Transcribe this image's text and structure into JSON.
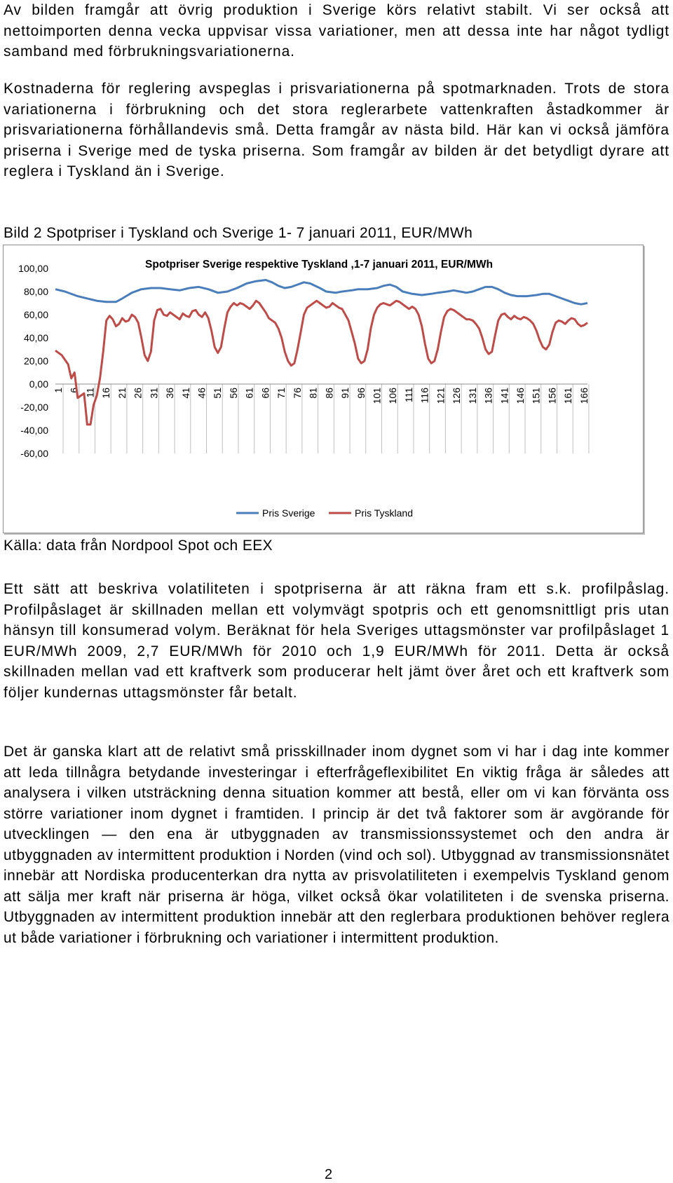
{
  "document": {
    "para1": "Av bilden framgår att övrig produktion i Sverige körs relativt stabilt. Vi ser också att nettoimporten denna vecka uppvisar vissa variationer, men att dessa inte har något tydligt samband med förbrukningsvariationerna.",
    "para2": "Kostnaderna för reglering avspeglas i prisvariationerna på spotmarknaden. Trots de stora variationerna i förbrukning och det stora reglerarbete vattenkraften åstadkommer är prisvariationerna förhållandevis små. Detta framgår av nästa bild. Här kan vi också jämföra priserna i Sverige med de tyska priserna. Som framgår av bilden är det betydligt dyrare att reglera i Tyskland än i Sverige.",
    "figure_caption": "Bild 2 Spotpriser i Tyskland och Sverige 1- 7 januari 2011, EUR/MWh",
    "source": "Källa: data från Nordpool Spot och EEX",
    "para3": "Ett sätt att beskriva volatiliteten i spotpriserna är att räkna fram ett s.k. profilpåslag. Profilpåslaget är skillnaden mellan ett volymvägt spotpris och ett genomsnittligt pris utan hänsyn till konsumerad volym. Beräknat för hela Sveriges uttagsmönster var profilpåslaget 1 EUR/MWh 2009, 2,7 EUR/MWh för 2010 och 1,9 EUR/MWh för 2011. Detta är också skillnaden mellan vad ett kraftverk som producerar helt jämt över året och ett kraftverk som följer kundernas uttagsmönster får betalt.",
    "para4": "Det är ganska klart att de relativt små prisskillnader inom dygnet som vi har i dag inte kommer att leda tillnågra betydande investeringar i efterfrågeflexibilitet En viktig fråga är således att analysera i vilken utsträckning denna situation kommer att bestå, eller om vi kan förvänta oss större variationer inom dygnet i framtiden. I princip är det två faktorer som är avgörande för utvecklingen — den ena är utbyggnaden av transmissionssystemet och den andra är utbyggnaden av intermittent produktion i Norden (vind och sol). Utbyggnad av transmissionsnätet innebär att Nordiska producenterkan dra nytta av prisvolatiliteten i exempelvis Tyskland genom att sälja mer kraft när priserna är höga, vilket också ökar volatiliteten i de svenska priserna. Utbyggnaden av intermittent produktion innebär att den reglerbara produktionen behöver reglera ut både variationer i förbrukning och variationer i intermittent produktion.",
    "page_number": "2"
  },
  "chart_data": {
    "type": "line",
    "title": "Spotpriser Sverige respektive Tyskland ,1-7 januari 2011, EUR/MWh",
    "xlabel": "",
    "ylabel": "",
    "ylim": [
      -60,
      100
    ],
    "yticks": [
      "100,00",
      "80,00",
      "60,00",
      "40,00",
      "20,00",
      "0,00",
      "-20,00",
      "-40,00",
      "-60,00"
    ],
    "xticks": [
      "1",
      "6",
      "11",
      "16",
      "21",
      "26",
      "31",
      "36",
      "41",
      "46",
      "51",
      "56",
      "61",
      "66",
      "71",
      "76",
      "81",
      "86",
      "91",
      "96",
      "101",
      "106",
      "111",
      "116",
      "121",
      "126",
      "131",
      "136",
      "141",
      "146",
      "151",
      "156",
      "161",
      "166"
    ],
    "xlim": [
      1,
      168
    ],
    "grid": "vertical",
    "legend_position": "bottom",
    "series": [
      {
        "name": "Pris Sverige",
        "color": "#4a7ebb",
        "points": [
          [
            1,
            82
          ],
          [
            4,
            80
          ],
          [
            8,
            76
          ],
          [
            11,
            74
          ],
          [
            14,
            72
          ],
          [
            17,
            71
          ],
          [
            20,
            71
          ],
          [
            22,
            74
          ],
          [
            25,
            79
          ],
          [
            28,
            82
          ],
          [
            31,
            83
          ],
          [
            34,
            83
          ],
          [
            37,
            82
          ],
          [
            40,
            81
          ],
          [
            43,
            83
          ],
          [
            46,
            84
          ],
          [
            49,
            82
          ],
          [
            52,
            79
          ],
          [
            55,
            80
          ],
          [
            58,
            83
          ],
          [
            61,
            87
          ],
          [
            64,
            89
          ],
          [
            67,
            90
          ],
          [
            69,
            88
          ],
          [
            71,
            85
          ],
          [
            73,
            83
          ],
          [
            75,
            84
          ],
          [
            77,
            86
          ],
          [
            79,
            88
          ],
          [
            81,
            87
          ],
          [
            84,
            83
          ],
          [
            86,
            80
          ],
          [
            89,
            79
          ],
          [
            91,
            80
          ],
          [
            94,
            81
          ],
          [
            96,
            82
          ],
          [
            99,
            82
          ],
          [
            102,
            83
          ],
          [
            104,
            85
          ],
          [
            106,
            86
          ],
          [
            108,
            84
          ],
          [
            110,
            80
          ],
          [
            113,
            78
          ],
          [
            116,
            77
          ],
          [
            119,
            78
          ],
          [
            121,
            79
          ],
          [
            124,
            80
          ],
          [
            126,
            81
          ],
          [
            128,
            80
          ],
          [
            130,
            79
          ],
          [
            132,
            80
          ],
          [
            134,
            82
          ],
          [
            136,
            84
          ],
          [
            138,
            84
          ],
          [
            140,
            82
          ],
          [
            142,
            79
          ],
          [
            144,
            77
          ],
          [
            146,
            76
          ],
          [
            149,
            76
          ],
          [
            152,
            77
          ],
          [
            154,
            78
          ],
          [
            156,
            78
          ],
          [
            158,
            76
          ],
          [
            160,
            74
          ],
          [
            162,
            72
          ],
          [
            164,
            70
          ],
          [
            166,
            69
          ],
          [
            168,
            70
          ]
        ]
      },
      {
        "name": "Pris Tyskland",
        "color": "#be4b48",
        "points": [
          [
            1,
            29
          ],
          [
            3,
            25
          ],
          [
            5,
            17
          ],
          [
            6,
            5
          ],
          [
            7,
            10
          ],
          [
            8,
            -12
          ],
          [
            9,
            -10
          ],
          [
            10,
            -8
          ],
          [
            11,
            -35
          ],
          [
            12,
            -35
          ],
          [
            13,
            -18
          ],
          [
            14,
            -10
          ],
          [
            15,
            5
          ],
          [
            16,
            28
          ],
          [
            17,
            55
          ],
          [
            18,
            59
          ],
          [
            19,
            56
          ],
          [
            20,
            50
          ],
          [
            21,
            52
          ],
          [
            22,
            57
          ],
          [
            23,
            54
          ],
          [
            24,
            55
          ],
          [
            25,
            60
          ],
          [
            26,
            58
          ],
          [
            27,
            53
          ],
          [
            28,
            40
          ],
          [
            29,
            25
          ],
          [
            30,
            20
          ],
          [
            31,
            28
          ],
          [
            32,
            55
          ],
          [
            33,
            64
          ],
          [
            34,
            65
          ],
          [
            35,
            60
          ],
          [
            36,
            59
          ],
          [
            37,
            62
          ],
          [
            38,
            60
          ],
          [
            39,
            58
          ],
          [
            40,
            56
          ],
          [
            41,
            61
          ],
          [
            42,
            59
          ],
          [
            43,
            58
          ],
          [
            44,
            63
          ],
          [
            45,
            64
          ],
          [
            46,
            60
          ],
          [
            47,
            58
          ],
          [
            48,
            62
          ],
          [
            49,
            57
          ],
          [
            50,
            46
          ],
          [
            51,
            32
          ],
          [
            52,
            27
          ],
          [
            53,
            32
          ],
          [
            54,
            48
          ],
          [
            55,
            62
          ],
          [
            56,
            67
          ],
          [
            57,
            70
          ],
          [
            58,
            68
          ],
          [
            59,
            70
          ],
          [
            60,
            69
          ],
          [
            61,
            67
          ],
          [
            62,
            65
          ],
          [
            63,
            68
          ],
          [
            64,
            72
          ],
          [
            65,
            70
          ],
          [
            66,
            66
          ],
          [
            67,
            62
          ],
          [
            68,
            57
          ],
          [
            69,
            55
          ],
          [
            70,
            53
          ],
          [
            71,
            48
          ],
          [
            72,
            40
          ],
          [
            73,
            28
          ],
          [
            74,
            20
          ],
          [
            75,
            16
          ],
          [
            76,
            18
          ],
          [
            77,
            30
          ],
          [
            78,
            45
          ],
          [
            79,
            60
          ],
          [
            80,
            66
          ],
          [
            81,
            68
          ],
          [
            82,
            70
          ],
          [
            83,
            72
          ],
          [
            84,
            70
          ],
          [
            85,
            68
          ],
          [
            86,
            66
          ],
          [
            87,
            67
          ],
          [
            88,
            70
          ],
          [
            89,
            68
          ],
          [
            90,
            66
          ],
          [
            91,
            65
          ],
          [
            92,
            60
          ],
          [
            93,
            55
          ],
          [
            94,
            45
          ],
          [
            95,
            35
          ],
          [
            96,
            22
          ],
          [
            97,
            18
          ],
          [
            98,
            20
          ],
          [
            99,
            30
          ],
          [
            100,
            48
          ],
          [
            101,
            60
          ],
          [
            102,
            66
          ],
          [
            103,
            69
          ],
          [
            104,
            70
          ],
          [
            105,
            69
          ],
          [
            106,
            68
          ],
          [
            107,
            70
          ],
          [
            108,
            72
          ],
          [
            109,
            71
          ],
          [
            110,
            69
          ],
          [
            111,
            67
          ],
          [
            112,
            65
          ],
          [
            113,
            67
          ],
          [
            114,
            65
          ],
          [
            115,
            60
          ],
          [
            116,
            50
          ],
          [
            117,
            35
          ],
          [
            118,
            22
          ],
          [
            119,
            18
          ],
          [
            120,
            20
          ],
          [
            121,
            30
          ],
          [
            122,
            45
          ],
          [
            123,
            58
          ],
          [
            124,
            63
          ],
          [
            125,
            65
          ],
          [
            126,
            64
          ],
          [
            127,
            62
          ],
          [
            128,
            60
          ],
          [
            129,
            58
          ],
          [
            130,
            56
          ],
          [
            131,
            56
          ],
          [
            132,
            55
          ],
          [
            133,
            52
          ],
          [
            134,
            48
          ],
          [
            135,
            40
          ],
          [
            136,
            30
          ],
          [
            137,
            26
          ],
          [
            138,
            28
          ],
          [
            139,
            42
          ],
          [
            140,
            55
          ],
          [
            141,
            60
          ],
          [
            142,
            61
          ],
          [
            143,
            58
          ],
          [
            144,
            56
          ],
          [
            145,
            59
          ],
          [
            146,
            57
          ],
          [
            147,
            56
          ],
          [
            148,
            58
          ],
          [
            149,
            57
          ],
          [
            150,
            55
          ],
          [
            151,
            52
          ],
          [
            152,
            46
          ],
          [
            153,
            38
          ],
          [
            154,
            32
          ],
          [
            155,
            30
          ],
          [
            156,
            34
          ],
          [
            157,
            45
          ],
          [
            158,
            53
          ],
          [
            159,
            55
          ],
          [
            160,
            54
          ],
          [
            161,
            52
          ],
          [
            162,
            55
          ],
          [
            163,
            57
          ],
          [
            164,
            56
          ],
          [
            165,
            52
          ],
          [
            166,
            50
          ],
          [
            167,
            51
          ],
          [
            168,
            53
          ]
        ]
      }
    ]
  }
}
